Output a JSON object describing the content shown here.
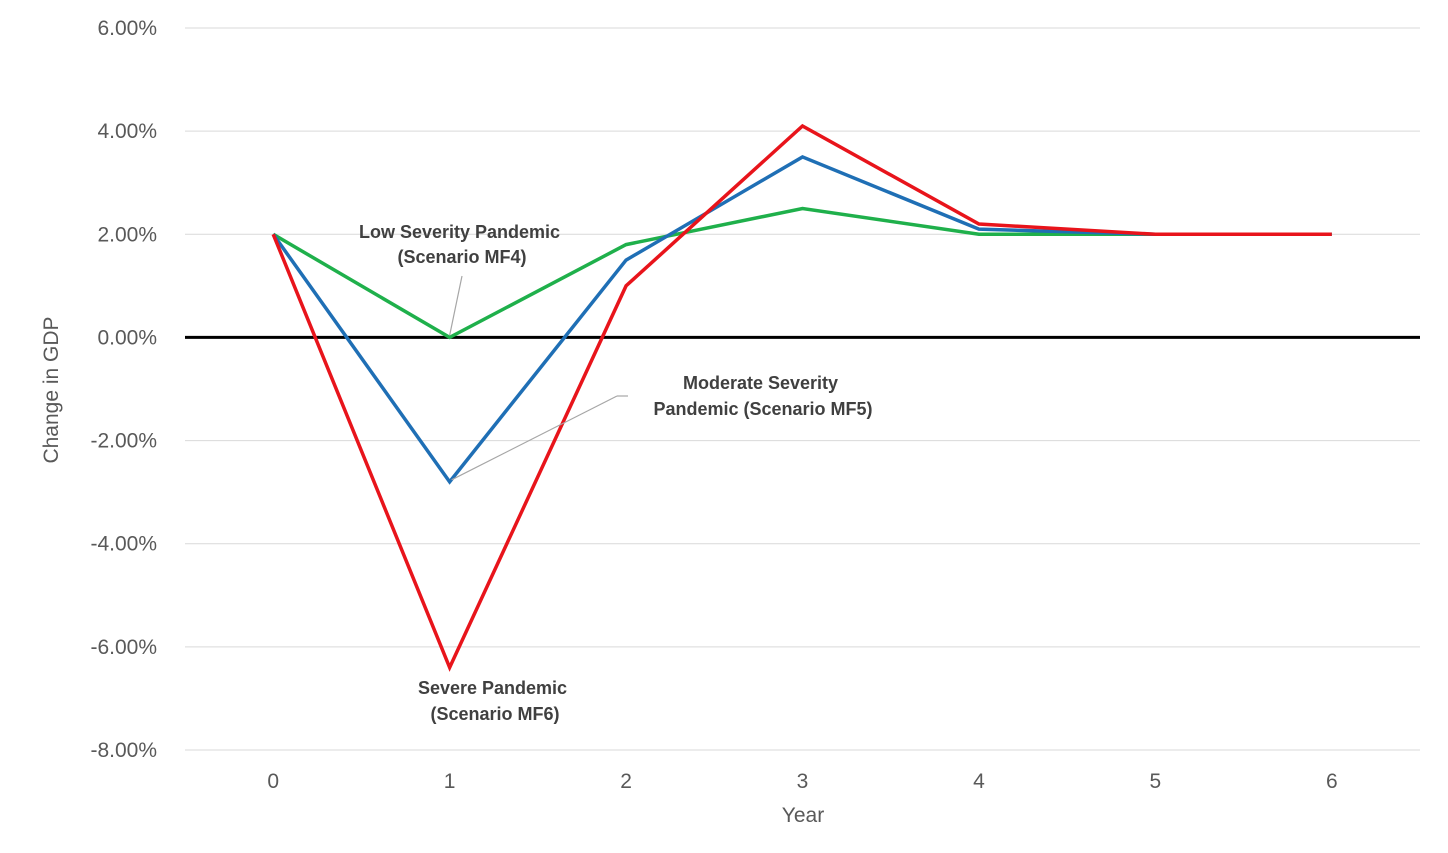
{
  "chart_data": {
    "type": "line",
    "xlabel": "Year",
    "ylabel": "Change in GDP",
    "x": [
      0,
      1,
      2,
      3,
      4,
      5,
      6
    ],
    "xlim": [
      -0.5,
      6.5
    ],
    "ylim": [
      -8,
      6
    ],
    "ytick_values": [
      6,
      4,
      2,
      0,
      -2,
      -4,
      -6,
      -8
    ],
    "ytick_labels": [
      "6.00%",
      "4.00%",
      "2.00%",
      "0.00%",
      "-2.00%",
      "-4.00%",
      "-6.00%",
      "-8.00%"
    ],
    "xtick_labels": [
      "0",
      "1",
      "2",
      "3",
      "4",
      "5",
      "6"
    ],
    "grid": true,
    "zero_line_color": "#000000",
    "series": [
      {
        "key": "mf4",
        "color": "#1FB04B",
        "values": [
          2.0,
          0.0,
          1.8,
          2.5,
          2.0,
          2.0,
          2.0
        ]
      },
      {
        "key": "mf5",
        "color": "#1F6FB5",
        "values": [
          2.0,
          -2.8,
          1.5,
          3.5,
          2.1,
          2.0,
          2.0
        ]
      },
      {
        "key": "mf6",
        "color": "#E8141B",
        "values": [
          2.0,
          -6.4,
          1.0,
          4.1,
          2.2,
          2.0,
          2.0
        ]
      }
    ],
    "annotations": [
      {
        "series": "mf4",
        "lines": [
          "Low Severity Pandemic",
          "(Scenario MF4)"
        ]
      },
      {
        "series": "mf5",
        "lines": [
          "Moderate Severity",
          "Pandemic (Scenario MF5)"
        ]
      },
      {
        "series": "mf6",
        "lines": [
          "Severe Pandemic",
          "(Scenario MF6)"
        ]
      }
    ]
  }
}
